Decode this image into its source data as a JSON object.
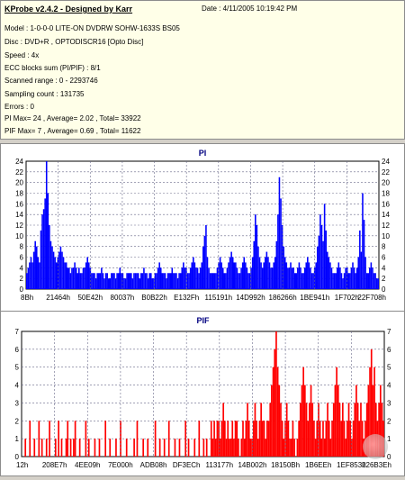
{
  "header": {
    "app_title": "KProbe v2.4.2 - Designed by Karr",
    "date": "Date : 4/11/2005 10:19:42 PM",
    "lines": [
      "Model : 1-0-0-0 LITE-ON DVDRW SOHW-1633S BS05",
      "Disc : DVD+R , OPTODISCR16 [Opto Disc]",
      "Speed : 4x",
      "ECC blocks sum (PI/PIF) : 8/1",
      "Scanned range : 0 - 2293746",
      "Sampling count : 131735",
      "Errors : 0",
      "PI Max= 24 , Average= 2.02 , Total= 33922",
      "PIF Max= 7 , Average= 0.69 , Total= 11622"
    ]
  },
  "chart_data": [
    {
      "type": "bar",
      "title": "PI",
      "color": "#0000ff",
      "ylim": [
        0,
        24
      ],
      "yticks": [
        0,
        2,
        4,
        6,
        8,
        10,
        12,
        14,
        16,
        18,
        20,
        22,
        24
      ],
      "xtick_labels": [
        "8Bh",
        "21464h",
        "50E42h",
        "80037h",
        "B0B22h",
        "E132Fh",
        "115191h",
        "14D992h",
        "186266h",
        "1BE941h",
        "1F702h",
        "22F708h"
      ],
      "grid": true,
      "series": [
        {
          "values": [
            3,
            4,
            5,
            6,
            5,
            7,
            9,
            8,
            6,
            5,
            11,
            14,
            15,
            17,
            24,
            18,
            12,
            9,
            8,
            7,
            6,
            5,
            6,
            7,
            8,
            7,
            6,
            5,
            5,
            4,
            4,
            3,
            4,
            4,
            5,
            4,
            3,
            4,
            3,
            3,
            4,
            4,
            5,
            6,
            5,
            4,
            3,
            3,
            3,
            2,
            3,
            3,
            3,
            4,
            3,
            2,
            3,
            3,
            2,
            2,
            3,
            3,
            3,
            2,
            3,
            3,
            4,
            3,
            3,
            2,
            2,
            3,
            3,
            3,
            3,
            2,
            3,
            3,
            3,
            3,
            2,
            3,
            3,
            4,
            3,
            3,
            2,
            3,
            3,
            2,
            2,
            3,
            3,
            4,
            5,
            4,
            3,
            3,
            3,
            2,
            3,
            3,
            3,
            4,
            3,
            3,
            3,
            2,
            3,
            3,
            4,
            5,
            4,
            4,
            3,
            3,
            4,
            5,
            6,
            5,
            4,
            4,
            3,
            4,
            5,
            8,
            10,
            12,
            6,
            4,
            3,
            3,
            3,
            3,
            3,
            4,
            5,
            6,
            5,
            4,
            3,
            3,
            4,
            5,
            6,
            7,
            6,
            5,
            5,
            4,
            3,
            3,
            4,
            5,
            6,
            5,
            4,
            3,
            3,
            4,
            6,
            9,
            14,
            12,
            8,
            6,
            5,
            4,
            5,
            6,
            7,
            6,
            5,
            4,
            4,
            5,
            6,
            9,
            14,
            21,
            17,
            12,
            8,
            6,
            5,
            4,
            4,
            5,
            4,
            4,
            3,
            3,
            4,
            5,
            4,
            3,
            3,
            4,
            5,
            6,
            5,
            4,
            3,
            3,
            4,
            5,
            8,
            10,
            14,
            12,
            9,
            16,
            11,
            7,
            6,
            5,
            4,
            3,
            3,
            3,
            4,
            5,
            4,
            3,
            2,
            3,
            4,
            4,
            3,
            3,
            4,
            5,
            4,
            3,
            4,
            6,
            11,
            7,
            18,
            13,
            6,
            3,
            3,
            4,
            5,
            4,
            3,
            3,
            2,
            2
          ]
        }
      ]
    },
    {
      "type": "bar",
      "title": "PIF",
      "color": "#ff0000",
      "ylim": [
        0,
        7
      ],
      "yticks": [
        0,
        1,
        2,
        3,
        4,
        5,
        6,
        7
      ],
      "xtick_labels": [
        "12h",
        "208E7h",
        "4EE09h",
        "7E000h",
        "ADB08h",
        "DF3ECh",
        "113177h",
        "14B002h",
        "18150Bh",
        "1B6EEh",
        "1EF853h",
        "226B3Eh"
      ],
      "grid": true,
      "series": [
        {
          "values": [
            0,
            0,
            1,
            0,
            0,
            2,
            0,
            0,
            1,
            0,
            0,
            2,
            0,
            1,
            0,
            0,
            1,
            0,
            2,
            0,
            0,
            0,
            1,
            0,
            2,
            0,
            1,
            0,
            0,
            1,
            2,
            0,
            1,
            0,
            1,
            2,
            0,
            0,
            1,
            0,
            0,
            0,
            2,
            0,
            1,
            0,
            0,
            0,
            1,
            0,
            0,
            1,
            0,
            0,
            0,
            2,
            0,
            0,
            1,
            0,
            0,
            0,
            1,
            0,
            0,
            2,
            0,
            0,
            0,
            1,
            0,
            0,
            0,
            0,
            1,
            0,
            2,
            0,
            0,
            0,
            1,
            0,
            0,
            1,
            0,
            0,
            0,
            0,
            2,
            0,
            0,
            1,
            0,
            0,
            1,
            0,
            0,
            2,
            0,
            0,
            0,
            1,
            0,
            0,
            1,
            0,
            0,
            0,
            2,
            0,
            1,
            0,
            0,
            0,
            1,
            0,
            0,
            2,
            0,
            0,
            1,
            0,
            1,
            0,
            0,
            2,
            1,
            2,
            1,
            2,
            2,
            1,
            2,
            3,
            2,
            1,
            2,
            1,
            1,
            2,
            1,
            2,
            2,
            1,
            0,
            1,
            2,
            1,
            2,
            3,
            2,
            1,
            1,
            2,
            3,
            2,
            1,
            2,
            3,
            2,
            2,
            1,
            2,
            2,
            3,
            4,
            5,
            6,
            7,
            5,
            4,
            3,
            2,
            1,
            2,
            3,
            2,
            1,
            1,
            2,
            1,
            0,
            1,
            2,
            3,
            4,
            5,
            4,
            3,
            2,
            3,
            4,
            3,
            2,
            1,
            2,
            3,
            2,
            1,
            2,
            1,
            2,
            3,
            2,
            1,
            2,
            3,
            4,
            5,
            4,
            3,
            2,
            3,
            2,
            1,
            2,
            3,
            2,
            1,
            2,
            3,
            4,
            3,
            2,
            3,
            2,
            1,
            2,
            3,
            4,
            5,
            6,
            4,
            5,
            3,
            2,
            3,
            4,
            3,
            2
          ]
        }
      ]
    }
  ]
}
